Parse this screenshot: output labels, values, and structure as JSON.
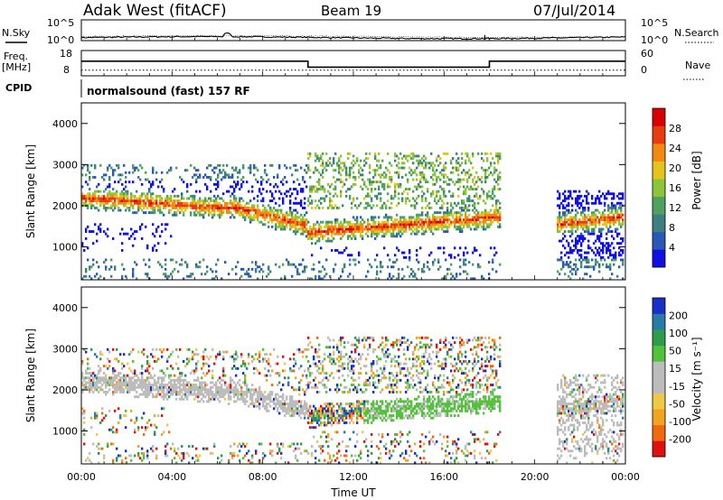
{
  "header": {
    "station": "Adak West (fitACF)",
    "beam": "Beam 19",
    "date": "07/Jul/2014"
  },
  "left_labels": {
    "nsky": "N.Sky",
    "freq": "Freq.",
    "freq_unit": "[MHz]",
    "cpid": "CPID"
  },
  "right_labels": {
    "nsearch": "N.Search",
    "nave": "Nave"
  },
  "cpid_text": "normalsound (fast) 157 RF",
  "colors": {
    "pwr_scale": [
      "#1010e0",
      "#2a58b8",
      "#3e7f82",
      "#4ea25e",
      "#8cc53a",
      "#e6c41e",
      "#f28a12",
      "#e63c10",
      "#d80000"
    ],
    "vel_scale": [
      "#e01010",
      "#f06810",
      "#f3a41e",
      "#f0c848",
      "#bcbcbc",
      "#bcbcbc",
      "#52c23a",
      "#2e9c4a",
      "#2a7aa8",
      "#1a2ec8"
    ]
  },
  "chart_data": [
    {
      "type": "line",
      "name": "noise",
      "x_range_hours": [
        0,
        24
      ],
      "left_axis": {
        "label": "N.Sky",
        "ticks": [
          "10^5",
          "10^0"
        ],
        "scale": "log"
      },
      "right_axis": {
        "label": "N.Search",
        "ticks": [
          "10^5",
          "10^0"
        ],
        "scale": "log"
      },
      "sky_level_log10": 0.5,
      "search_level_log10": 0.5
    },
    {
      "type": "line",
      "name": "frequency-nave",
      "x_range_hours": [
        0,
        24
      ],
      "left_axis": {
        "ticks": [
          "18",
          "8"
        ],
        "range": [
          8,
          18
        ]
      },
      "right_axis": {
        "ticks": [
          "60",
          "0"
        ],
        "range": [
          0,
          60
        ]
      },
      "freq_mhz": [
        {
          "start": 0,
          "end": 10,
          "value": 14
        },
        {
          "start": 10,
          "end": 18,
          "value": 11
        },
        {
          "start": 18,
          "end": 24,
          "value": 14
        }
      ],
      "nave": 9
    },
    {
      "type": "heatmap",
      "name": "power",
      "xlabel": "",
      "ylabel": "Slant Range [km]",
      "yticks": [
        "1000",
        "2000",
        "3000",
        "4000"
      ],
      "ylim": [
        200,
        4500
      ],
      "xlim": [
        0,
        24
      ],
      "colorbar": {
        "label": "Power [dB]",
        "ticks": [
          "28",
          "24",
          "20",
          "16",
          "12",
          "8",
          "4"
        ],
        "range": [
          0,
          30
        ]
      }
    },
    {
      "type": "heatmap",
      "name": "velocity",
      "xlabel": "Time UT",
      "ylabel": "Slant Range [km]",
      "yticks": [
        "1000",
        "2000",
        "3000",
        "4000"
      ],
      "ylim": [
        200,
        4500
      ],
      "xlim": [
        0,
        24
      ],
      "xticks": [
        "00:00",
        "04:00",
        "08:00",
        "12:00",
        "16:00",
        "20:00",
        "00:00"
      ],
      "colorbar": {
        "label": "Velocity [m s⁻¹]",
        "ticks": [
          "200",
          "100",
          "50",
          "15",
          "-15",
          "-50",
          "-100",
          "-200"
        ]
      }
    }
  ]
}
